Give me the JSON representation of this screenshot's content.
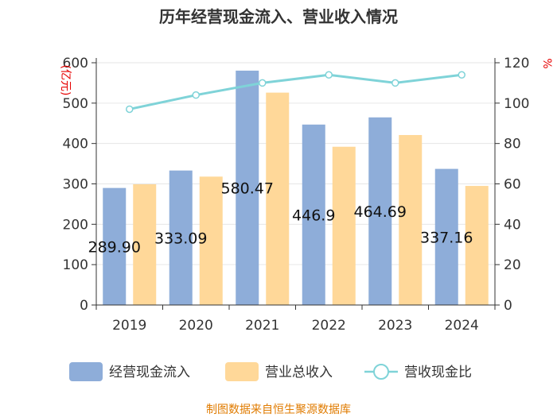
{
  "chart_data": {
    "type": "bar",
    "title": "历年经营现金流入、营业收入情况",
    "categories": [
      "2019",
      "2020",
      "2021",
      "2022",
      "2023",
      "2024"
    ],
    "series": [
      {
        "name": "经营现金流入",
        "kind": "bar",
        "axis": "left",
        "color": "#8eadd9",
        "values": [
          289.9,
          333.09,
          580.47,
          446.9,
          464.69,
          337.16
        ]
      },
      {
        "name": "营业总收入",
        "kind": "bar",
        "axis": "left",
        "color": "#ffd899",
        "values": [
          299,
          318,
          526,
          392,
          421,
          295
        ]
      },
      {
        "name": "营收现金比",
        "kind": "line",
        "axis": "right",
        "color": "#7fd3d8",
        "values": [
          97,
          104,
          110,
          114,
          110,
          114
        ]
      }
    ],
    "data_labels": [
      "289.90",
      "333.09",
      "580.47",
      "446.9",
      "464.69",
      "337.16"
    ],
    "left_axis": {
      "label": "(亿元)",
      "ylim": [
        0,
        600
      ],
      "ticks": [
        "0",
        "100",
        "200",
        "300",
        "400",
        "500",
        "600"
      ]
    },
    "right_axis": {
      "label": "%",
      "ylim": [
        0,
        120
      ],
      "ticks": [
        "0",
        "20",
        "40",
        "60",
        "80",
        "100",
        "120"
      ]
    },
    "legend": {
      "position": "bottom",
      "items": [
        "经营现金流入",
        "营业总收入",
        "营收现金比"
      ]
    },
    "source": "制图数据来自恒生聚源数据库"
  }
}
